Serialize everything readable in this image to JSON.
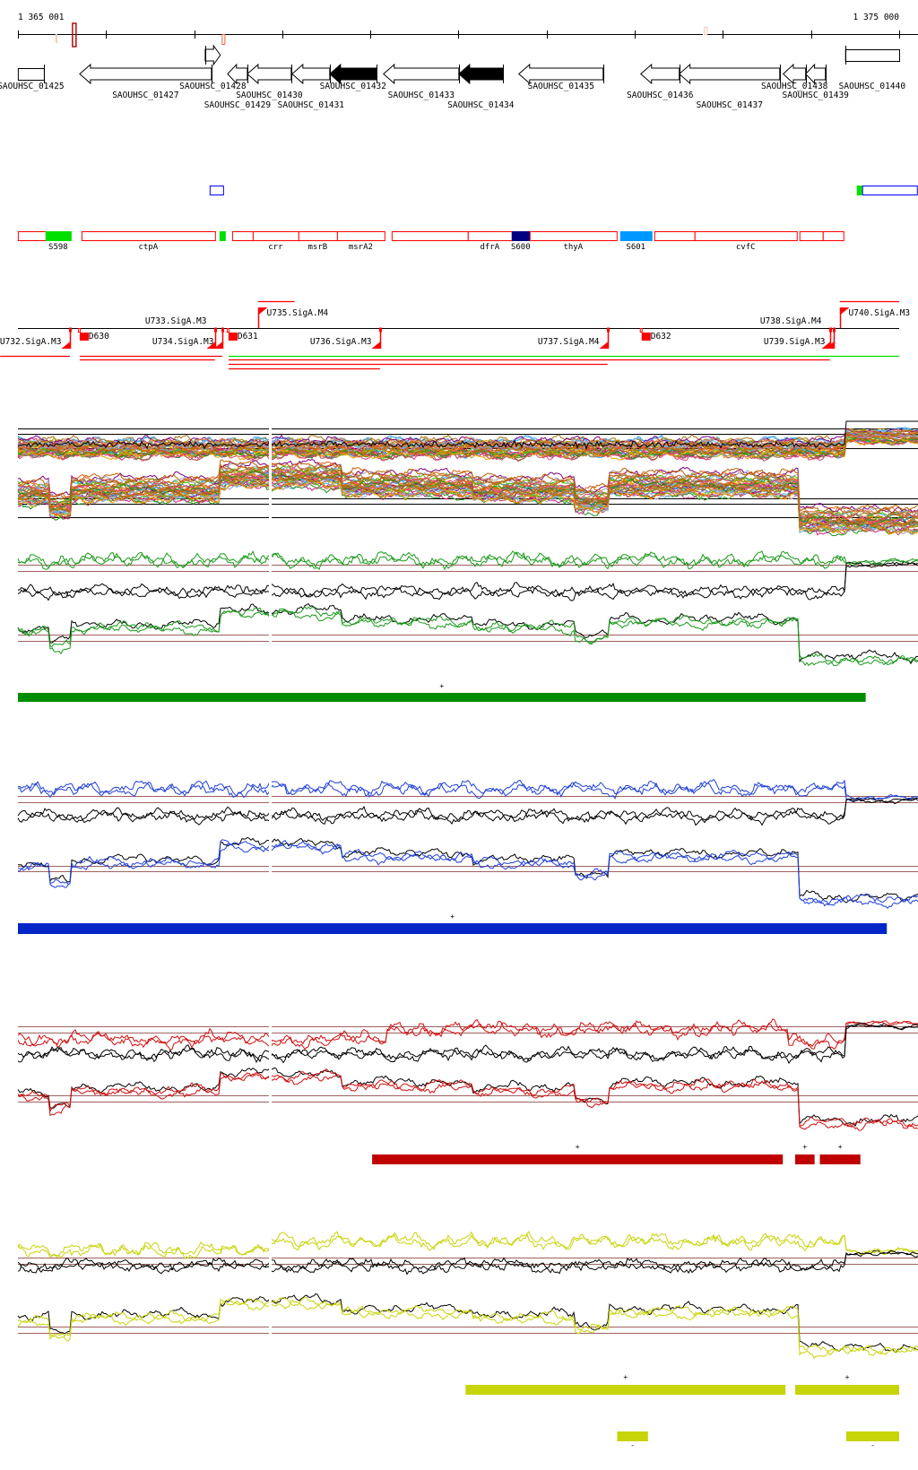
{
  "ruler": {
    "start_label": "1 365 001",
    "end_label": "1 375 000",
    "start": 1365001,
    "end": 1375000,
    "tick_step": 1000,
    "marks": [
      {
        "pos": 1365437,
        "color": "#f8c8b8"
      },
      {
        "pos": 1365620,
        "color": "#b01010"
      },
      {
        "pos": 1367319,
        "color": "#f06040"
      },
      {
        "pos": 1372790,
        "color": "#f0c8b8"
      }
    ]
  },
  "genes": [
    {
      "name": "SAOUHSC_01425",
      "start": 1365000,
      "end": 1365295,
      "strand": "-",
      "shape": "box",
      "fill": "#ffffff"
    },
    {
      "name": "SAOUHSC_01427",
      "start": 1365702,
      "end": 1367197,
      "strand": "-",
      "shape": "arrow",
      "fill": "#ffffff"
    },
    {
      "name": "SAOUHSC_01428",
      "start": 1367126,
      "end": 1367298,
      "strand": "+",
      "shape": "arrow",
      "fill": "#ffffff"
    },
    {
      "name": "SAOUHSC_01429",
      "start": 1367380,
      "end": 1367604,
      "strand": "-",
      "shape": "arrow",
      "fill": "#ffffff"
    },
    {
      "name": "SAOUHSC_01430",
      "start": 1367604,
      "end": 1368102,
      "strand": "-",
      "shape": "arrow",
      "fill": "#ffffff"
    },
    {
      "name": "SAOUHSC_01431",
      "start": 1368112,
      "end": 1368539,
      "strand": "-",
      "shape": "arrow",
      "fill": "#ffffff"
    },
    {
      "name": "SAOUHSC_01432",
      "start": 1368539,
      "end": 1369068,
      "strand": "-",
      "shape": "arrow",
      "fill": "#000000"
    },
    {
      "name": "SAOUHSC_01433",
      "start": 1369149,
      "end": 1370004,
      "strand": "-",
      "shape": "arrow",
      "fill": "#ffffff"
    },
    {
      "name": "SAOUHSC_01434",
      "start": 1370004,
      "end": 1370502,
      "strand": "-",
      "shape": "arrow",
      "fill": "#000000"
    },
    {
      "name": "SAOUHSC_01435",
      "start": 1370685,
      "end": 1371641,
      "strand": "-",
      "shape": "arrow",
      "fill": "#ffffff"
    },
    {
      "name": "SAOUHSC_01436",
      "start": 1372068,
      "end": 1372505,
      "strand": "-",
      "shape": "arrow",
      "fill": "#ffffff"
    },
    {
      "name": "SAOUHSC_01437",
      "start": 1372505,
      "end": 1373645,
      "strand": "-",
      "shape": "arrow",
      "fill": "#ffffff"
    },
    {
      "name": "SAOUHSC_01438",
      "start": 1373685,
      "end": 1373939,
      "strand": "-",
      "shape": "arrow",
      "fill": "#ffffff"
    },
    {
      "name": "SAOUHSC_01439",
      "start": 1373939,
      "end": 1374163,
      "strand": "-",
      "shape": "arrow",
      "fill": "#ffffff"
    },
    {
      "name": "SAOUHSC_01440",
      "start": 1374387,
      "end": 1375000,
      "strand": "+",
      "shape": "box",
      "fill": "#ffffff"
    }
  ],
  "upper_features": [
    {
      "start": 1367176,
      "end": 1367339,
      "color": "#0000ff",
      "filled": false
    },
    {
      "start": 1374519,
      "end": 1374580,
      "color": "#00e000",
      "filled": true
    },
    {
      "start": 1374580,
      "end": 1375211,
      "color": "#0000ff",
      "filled": false
    }
  ],
  "features": [
    {
      "label": "",
      "start": 1365000,
      "end": 1365315,
      "color": "#ff0000",
      "filled": false
    },
    {
      "label": "S598",
      "start": 1365315,
      "end": 1365600,
      "color": "#00e000",
      "filled": true
    },
    {
      "label": "ctpA",
      "start": 1365722,
      "end": 1367237,
      "color": "#ff0000",
      "filled": false
    },
    {
      "label": "",
      "start": 1367288,
      "end": 1367349,
      "color": "#00e000",
      "filled": true
    },
    {
      "label": "",
      "start": 1367431,
      "end": 1367665,
      "color": "#ff0000",
      "filled": false
    },
    {
      "label": "crr",
      "start": 1367665,
      "end": 1368183,
      "color": "#ff0000",
      "filled": false
    },
    {
      "label": "msrB",
      "start": 1368183,
      "end": 1368621,
      "color": "#ff0000",
      "filled": false
    },
    {
      "label": "msrA2",
      "start": 1368621,
      "end": 1369160,
      "color": "#ff0000",
      "filled": false
    },
    {
      "label": "",
      "start": 1369241,
      "end": 1370105,
      "color": "#ff0000",
      "filled": false
    },
    {
      "label": "dfrA",
      "start": 1370105,
      "end": 1370604,
      "color": "#ff0000",
      "filled": false
    },
    {
      "label": "S600",
      "start": 1370604,
      "end": 1370807,
      "color": "#000080",
      "filled": true
    },
    {
      "label": "thyA",
      "start": 1370807,
      "end": 1371794,
      "color": "#ff0000",
      "filled": false
    },
    {
      "label": "S601",
      "start": 1371834,
      "end": 1372190,
      "color": "#0099ff",
      "filled": true
    },
    {
      "label": "",
      "start": 1372221,
      "end": 1372678,
      "color": "#ff0000",
      "filled": false
    },
    {
      "label": "cvfC",
      "start": 1372678,
      "end": 1373838,
      "color": "#ff0000",
      "filled": false
    },
    {
      "label": "",
      "start": 1373868,
      "end": 1374133,
      "color": "#ff0000",
      "filled": false
    },
    {
      "label": "",
      "start": 1374133,
      "end": 1374367,
      "color": "#ff0000",
      "filled": false
    }
  ],
  "promoters": [
    {
      "name": "U732.SigA.M3",
      "pos": 1365590,
      "strand": "-"
    },
    {
      "name": "U733.SigA.M3",
      "pos": 1367237,
      "strand": "-"
    },
    {
      "name": "U734.SigA.M3",
      "pos": 1367319,
      "strand": "-"
    },
    {
      "name": "U735.SigA.M4",
      "pos": 1367726,
      "strand": "+"
    },
    {
      "name": "U736.SigA.M3",
      "pos": 1369109,
      "strand": "-"
    },
    {
      "name": "U737.SigA.M4",
      "pos": 1371692,
      "strand": "-"
    },
    {
      "name": "U738.SigA.M4",
      "pos": 1374214,
      "strand": "-"
    },
    {
      "name": "U739.SigA.M3",
      "pos": 1374255,
      "strand": "-"
    },
    {
      "name": "U740.SigA.M3",
      "pos": 1374326,
      "strand": "+"
    }
  ],
  "terminators": [
    {
      "name": "D630",
      "pos": 1365702
    },
    {
      "name": "D631",
      "pos": 1367390
    },
    {
      "name": "D632",
      "pos": 1372078
    }
  ],
  "transcripts": [
    {
      "start": 1367726,
      "end": 1368140,
      "color": "#ff0000"
    },
    {
      "start": 1374326,
      "end": 1375000,
      "color": "#ff0000"
    },
    {
      "start": 1364800,
      "end": 1365590,
      "color": "#ff0000"
    },
    {
      "start": 1365702,
      "end": 1367319,
      "color": "#ff0000"
    },
    {
      "start": 1367390,
      "end": 1375000,
      "color": "#00e000"
    },
    {
      "start": 1365702,
      "end": 1367237,
      "color": "#ff0000"
    },
    {
      "start": 1367390,
      "end": 1374214,
      "color": "#ff0000"
    },
    {
      "start": 1367390,
      "end": 1371692,
      "color": "#ff0000"
    },
    {
      "start": 1367390,
      "end": 1369109,
      "color": "#ff0000"
    }
  ],
  "chart_data": {
    "type": "line",
    "x_range": [
      1365001,
      1375000
    ],
    "grid": false,
    "tiling_profile": [
      {
        "start": 1365000,
        "end": 1365360,
        "level": 0.5
      },
      {
        "start": 1365360,
        "end": 1365600,
        "level": 0.1
      },
      {
        "start": 1365600,
        "end": 1367280,
        "level": 0.6
      },
      {
        "start": 1367280,
        "end": 1368670,
        "level": 1.0
      },
      {
        "start": 1368670,
        "end": 1370150,
        "level": 0.75
      },
      {
        "start": 1370150,
        "end": 1371320,
        "level": 0.6
      },
      {
        "start": 1371320,
        "end": 1371700,
        "level": 0.3
      },
      {
        "start": 1371700,
        "end": 1373870,
        "level": 0.75
      },
      {
        "start": 1373870,
        "end": 1375000,
        "level": -0.3
      }
    ],
    "panels": [
      {
        "color": "#1a9a1a",
        "bar_color": "#008c00",
        "segments": [
          {
            "start": 1365001,
            "end": 1374620,
            "strand": "+"
          }
        ]
      },
      {
        "color": "#1f3fd8",
        "bar_color": "#0026c8",
        "segments": [
          {
            "start": 1365001,
            "end": 1374860,
            "strand": "+"
          }
        ]
      },
      {
        "color": "#d01010",
        "bar_color": "#c00000",
        "segments": [
          {
            "start": 1369020,
            "end": 1373680,
            "strand": "+"
          },
          {
            "start": 1373820,
            "end": 1374040,
            "strand": "+"
          },
          {
            "start": 1374100,
            "end": 1374560,
            "strand": "+"
          }
        ]
      },
      {
        "color": "#c8d40a",
        "bar_color": "#c8d40a",
        "segments": [
          {
            "start": 1370080,
            "end": 1373710,
            "strand": "+"
          },
          {
            "start": 1373820,
            "end": 1375000,
            "strand": "+"
          },
          {
            "start": 1371800,
            "end": 1372150,
            "strand": "-"
          },
          {
            "start": 1374400,
            "end": 1375000,
            "strand": "-"
          }
        ]
      }
    ]
  }
}
